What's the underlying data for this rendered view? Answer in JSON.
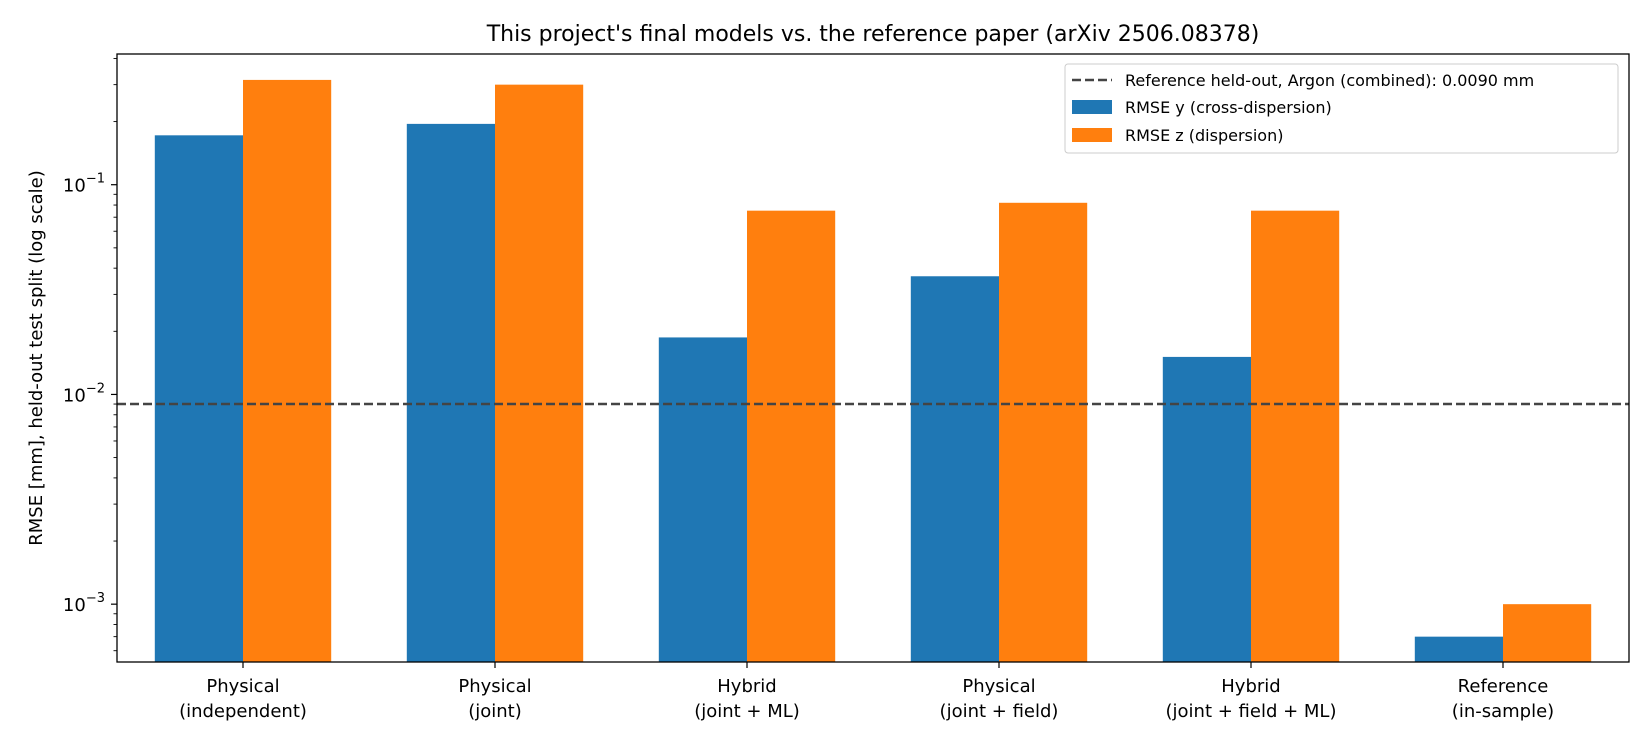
{
  "chart_data": {
    "type": "bar",
    "title": "This project's final models vs. the reference paper (arXiv 2506.08378)",
    "xlabel": "",
    "ylabel": "RMSE [mm], held-out test split (log scale)",
    "yscale": "log",
    "ylim": [
      0.00053,
      0.42
    ],
    "yticks": [
      {
        "value": 0.001,
        "base": "10",
        "exp": "−3"
      },
      {
        "value": 0.01,
        "base": "10",
        "exp": "−2"
      },
      {
        "value": 0.1,
        "base": "10",
        "exp": "−1"
      }
    ],
    "categories": [
      [
        "Physical",
        "(independent)"
      ],
      [
        "Physical",
        "(joint)"
      ],
      [
        "Hybrid",
        "(joint + ML)"
      ],
      [
        "Physical",
        "(joint + field)"
      ],
      [
        "Hybrid",
        "(joint + field + ML)"
      ],
      [
        "Reference",
        "(in-sample)"
      ]
    ],
    "series": [
      {
        "name": "RMSE y (cross-dispersion)",
        "color": "#1f77b4",
        "values": [
          0.172,
          0.195,
          0.0187,
          0.0366,
          0.0151,
          0.0007
        ]
      },
      {
        "name": "RMSE z (dispersion)",
        "color": "#ff7f0e",
        "values": [
          0.316,
          0.3,
          0.0752,
          0.082,
          0.0752,
          0.001
        ]
      }
    ],
    "reference_line": {
      "label": "Reference held-out, Argon (combined): 0.0090 mm",
      "value": 0.009,
      "color": "#444444",
      "style": "dashed"
    },
    "grid": false,
    "legend_position": "top-right"
  }
}
